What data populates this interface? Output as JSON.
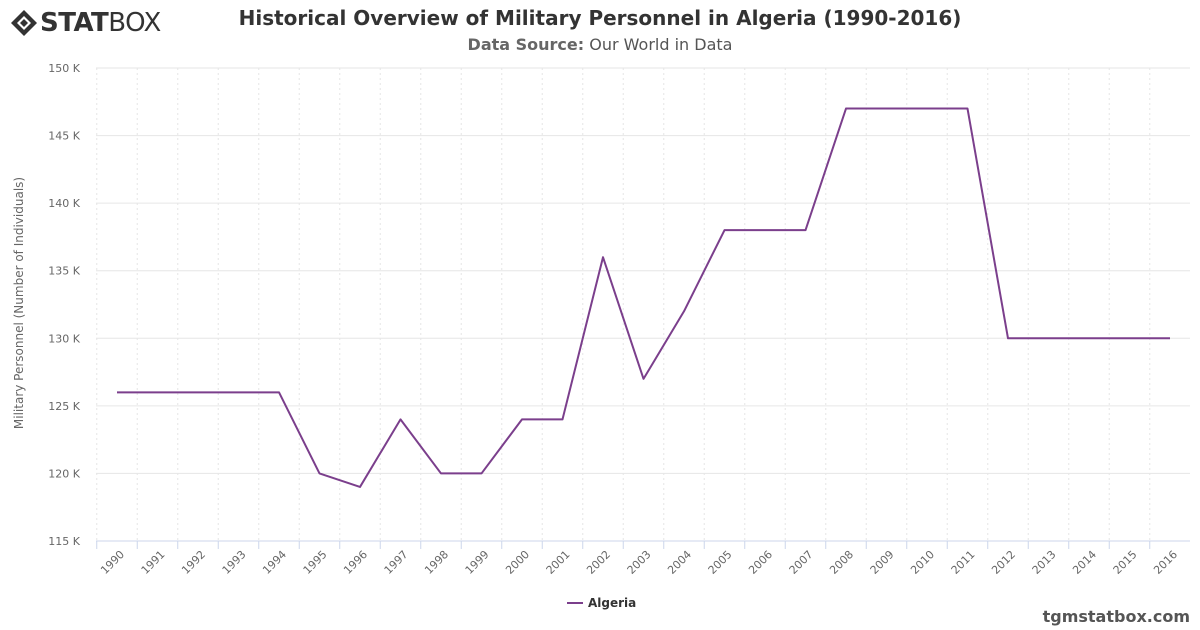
{
  "brand": {
    "stat": "STAT",
    "box": "BOX"
  },
  "header": {
    "title": "Historical Overview of Military Personnel in Algeria (1990-2016)",
    "subtitle_label": "Data Source:",
    "subtitle_value": "Our World in Data"
  },
  "footer": {
    "site": "tgmstatbox.com"
  },
  "colors": {
    "series": "#7b3f8c",
    "grid": "#e6e6e6",
    "axis_text": "#666666"
  },
  "chart_data": {
    "type": "line",
    "title": "Historical Overview of Military Personnel in Algeria (1990-2016)",
    "ylabel": "Military Personnel (Number of Individuals)",
    "xlabel": "",
    "ylim": [
      115000,
      150000
    ],
    "yticks": [
      115000,
      120000,
      125000,
      130000,
      135000,
      140000,
      145000,
      150000
    ],
    "ytick_labels": [
      "115 K",
      "120 K",
      "125 K",
      "130 K",
      "135 K",
      "140 K",
      "145 K",
      "150 K"
    ],
    "grid": true,
    "legend_position": "bottom-center",
    "x": [
      "1990",
      "1991",
      "1992",
      "1993",
      "1994",
      "1995",
      "1996",
      "1997",
      "1998",
      "1999",
      "2000",
      "2001",
      "2002",
      "2003",
      "2004",
      "2005",
      "2006",
      "2007",
      "2008",
      "2009",
      "2010",
      "2011",
      "2012",
      "2013",
      "2014",
      "2015",
      "2016"
    ],
    "series": [
      {
        "name": "Algeria",
        "color": "#7b3f8c",
        "values": [
          126000,
          126000,
          126000,
          126000,
          126000,
          120000,
          119000,
          124000,
          120000,
          120000,
          124000,
          124000,
          136000,
          127000,
          132000,
          138000,
          138000,
          138000,
          147000,
          147000,
          147000,
          147000,
          130000,
          130000,
          130000,
          130000,
          130000
        ]
      }
    ]
  }
}
